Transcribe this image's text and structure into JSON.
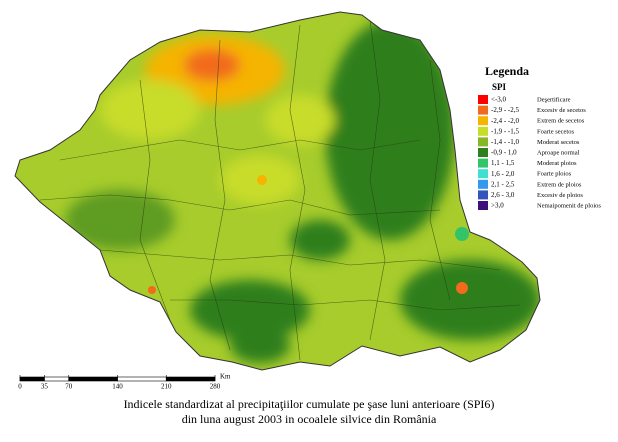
{
  "legend": {
    "title": "Legenda",
    "subtitle": "SPI",
    "items": [
      {
        "range": "<-3,0",
        "label": "Deşertificare",
        "color": "#ff0000"
      },
      {
        "range": "-2,9 - -2,5",
        "label": "Excesiv de secetos",
        "color": "#f26a1b"
      },
      {
        "range": "-2,4 - -2,0",
        "label": "Extrem de secetos",
        "color": "#f5b400"
      },
      {
        "range": "-1,9 - -1,5",
        "label": "Foarte secetos",
        "color": "#c8dc2a"
      },
      {
        "range": "-1,4 - -1,0",
        "label": "Moderat secetos",
        "color": "#86b825"
      },
      {
        "range": "-0,9 - 1,0",
        "label": "Aproape normal",
        "color": "#2f7f1f"
      },
      {
        "range": "1,1 - 1,5",
        "label": "Moderat ploios",
        "color": "#33c46a"
      },
      {
        "range": "1,6 - 2,0",
        "label": "Foarte ploios",
        "color": "#40e0d0"
      },
      {
        "range": "2,1 - 2,5",
        "label": "Extrem de ploios",
        "color": "#3399ee"
      },
      {
        "range": "2,6 - 3,0",
        "label": "Excesiv de ploios",
        "color": "#3355bb"
      },
      {
        "range": ">3,0",
        "label": "Nemaipomenit de ploios",
        "color": "#40107a"
      }
    ]
  },
  "scale": {
    "ticks": [
      0,
      35,
      70,
      140,
      210,
      280
    ],
    "unit": "Km"
  },
  "caption": [
    "Indicele standardizat al precipitaţiilor cumulate pe şase luni anterioare (SPI6)",
    "din luna august 2003 in ocoalele silvice din România"
  ]
}
